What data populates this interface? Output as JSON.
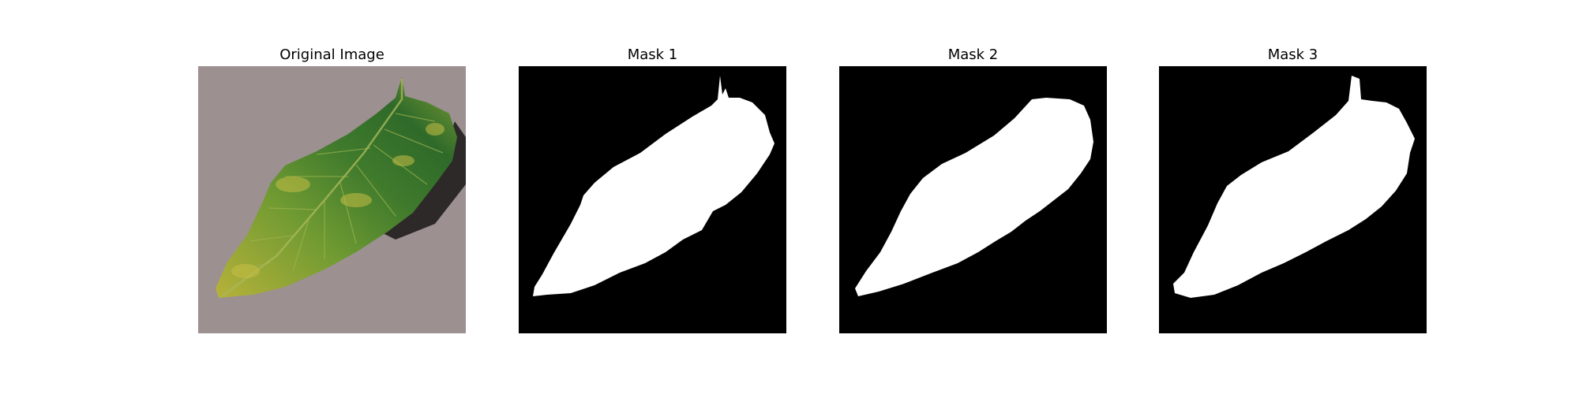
{
  "figure": {
    "panels": [
      {
        "title": "Original Image",
        "kind": "photo"
      },
      {
        "title": "Mask 1",
        "kind": "mask"
      },
      {
        "title": "Mask 2",
        "kind": "mask"
      },
      {
        "title": "Mask 3",
        "kind": "mask"
      }
    ],
    "colors": {
      "background_surface": "#9b8f8f",
      "leaf_dark": "#2f6a2a",
      "leaf_mid": "#4f8b2f",
      "leaf_yellow": "#b7b23a",
      "mask_background": "#000000",
      "mask_foreground": "#ffffff"
    }
  }
}
